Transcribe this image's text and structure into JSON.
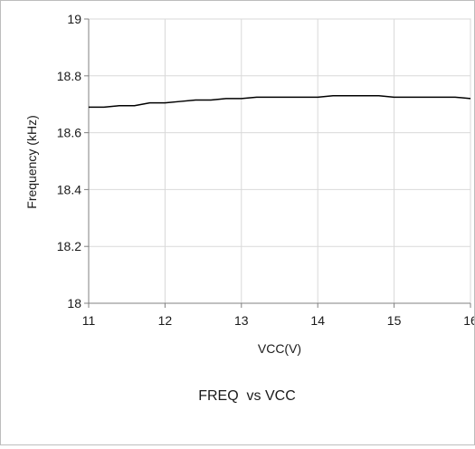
{
  "chart_data": {
    "type": "line",
    "title": "FREQ  vs VCC",
    "xlabel": "VCC(V)",
    "ylabel": "Frequency (kHz)",
    "xlim": [
      11,
      16
    ],
    "ylim": [
      18,
      19
    ],
    "x_ticks": [
      "11",
      "12",
      "13",
      "14",
      "15",
      "16"
    ],
    "y_ticks": [
      "18",
      "18.2",
      "18.4",
      "18.6",
      "18.8",
      "19"
    ],
    "grid": true,
    "legend": "none",
    "series": [
      {
        "color": "#000000",
        "x": [
          11.0,
          11.2,
          11.4,
          11.6,
          11.8,
          12.0,
          12.2,
          12.4,
          12.6,
          12.8,
          13.0,
          13.2,
          13.4,
          13.6,
          13.8,
          14.0,
          14.2,
          14.4,
          14.6,
          14.8,
          15.0,
          15.2,
          15.4,
          15.6,
          15.8,
          16.0
        ],
        "values": [
          18.69,
          18.69,
          18.695,
          18.695,
          18.705,
          18.705,
          18.71,
          18.715,
          18.715,
          18.72,
          18.72,
          18.725,
          18.725,
          18.725,
          18.725,
          18.725,
          18.73,
          18.73,
          18.73,
          18.73,
          18.725,
          18.725,
          18.725,
          18.725,
          18.725,
          18.72
        ]
      }
    ]
  }
}
